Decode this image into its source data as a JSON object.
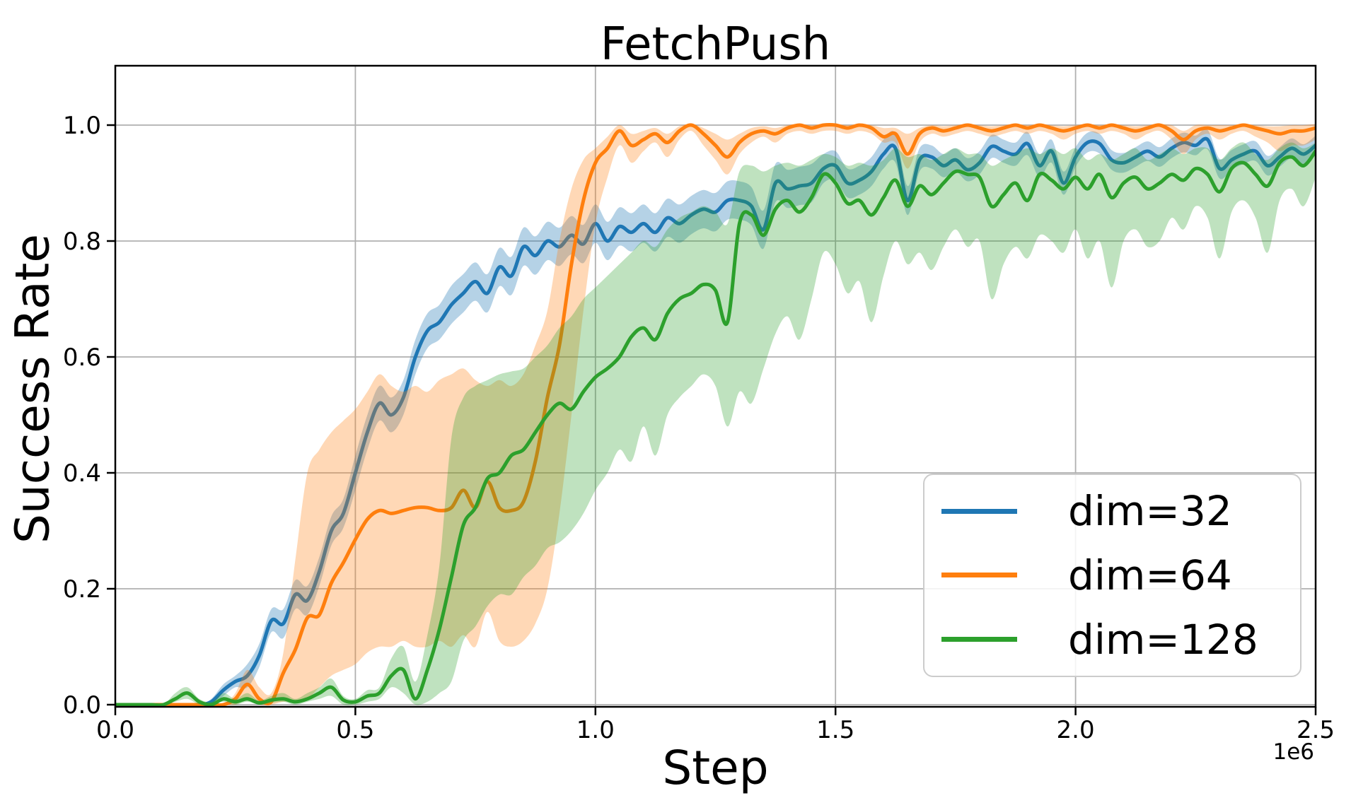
{
  "chart": {
    "title": "FetchPush",
    "xlabel": "Step",
    "ylabel": "Success Rate",
    "x_offset_label": "1e6"
  },
  "legend": {
    "position": "lower right",
    "entries": [
      {
        "label": "dim=32",
        "color": "#1f77b4"
      },
      {
        "label": "dim=64",
        "color": "#ff7f0e"
      },
      {
        "label": "dim=128",
        "color": "#2ca02c"
      }
    ]
  },
  "colors": {
    "background": "#ffffff",
    "grid": "#b0b0b0",
    "spine": "#000000",
    "series_blue": "#1f77b4",
    "series_orange": "#ff7f0e",
    "series_green": "#2ca02c"
  },
  "chart_data": {
    "type": "line",
    "title": "FetchPush",
    "xlabel": "Step",
    "ylabel": "Success Rate",
    "x_unit": "1e6 steps",
    "xlim_e6": [
      0,
      2.5
    ],
    "ylim": [
      -0.004,
      1.102
    ],
    "grid": true,
    "legend_position": "lower right",
    "x_start_e6": 0,
    "x_step_e6": 0.025,
    "xticks": {
      "values_e6": [
        0.0,
        0.5,
        1.0,
        1.5,
        2.0,
        2.5
      ],
      "labels": [
        "0.0",
        "0.5",
        "1.0",
        "1.5",
        "2.0",
        "2.5"
      ]
    },
    "yticks": {
      "values": [
        0.0,
        0.2,
        0.4,
        0.6,
        0.8,
        1.0
      ],
      "labels": [
        "0.0",
        "0.2",
        "0.4",
        "0.6",
        "0.8",
        "1.0"
      ]
    },
    "series": [
      {
        "name": "dim=32",
        "color": "#1f77b4",
        "band_alpha": 0.33,
        "mean": [
          0,
          0,
          0,
          0,
          0,
          0,
          0,
          0,
          0.005,
          0.025,
          0.04,
          0.05,
          0.085,
          0.145,
          0.14,
          0.19,
          0.18,
          0.23,
          0.3,
          0.33,
          0.4,
          0.47,
          0.52,
          0.5,
          0.53,
          0.6,
          0.645,
          0.66,
          0.69,
          0.71,
          0.73,
          0.71,
          0.755,
          0.74,
          0.79,
          0.775,
          0.8,
          0.79,
          0.81,
          0.795,
          0.83,
          0.8,
          0.825,
          0.815,
          0.83,
          0.815,
          0.84,
          0.83,
          0.845,
          0.855,
          0.85,
          0.87,
          0.87,
          0.86,
          0.82,
          0.9,
          0.89,
          0.895,
          0.9,
          0.925,
          0.93,
          0.9,
          0.905,
          0.92,
          0.95,
          0.96,
          0.87,
          0.94,
          0.945,
          0.93,
          0.94,
          0.923,
          0.935,
          0.963,
          0.955,
          0.95,
          0.968,
          0.93,
          0.955,
          0.9,
          0.945,
          0.97,
          0.968,
          0.94,
          0.935,
          0.945,
          0.955,
          0.945,
          0.96,
          0.97,
          0.965,
          0.975,
          0.925,
          0.94,
          0.95,
          0.955,
          0.93,
          0.945,
          0.96,
          0.95,
          0.965
        ],
        "lo": [
          0,
          0,
          0,
          0,
          0,
          0,
          0,
          0,
          0,
          0.015,
          0.03,
          0.03,
          0.065,
          0.125,
          0.115,
          0.165,
          0.155,
          0.205,
          0.275,
          0.305,
          0.37,
          0.44,
          0.49,
          0.47,
          0.5,
          0.57,
          0.615,
          0.63,
          0.657,
          0.677,
          0.697,
          0.677,
          0.722,
          0.707,
          0.757,
          0.742,
          0.767,
          0.757,
          0.777,
          0.762,
          0.797,
          0.767,
          0.792,
          0.782,
          0.797,
          0.782,
          0.807,
          0.797,
          0.812,
          0.822,
          0.817,
          0.837,
          0.837,
          0.827,
          0.787,
          0.867,
          0.857,
          0.862,
          0.867,
          0.9,
          0.905,
          0.875,
          0.88,
          0.895,
          0.925,
          0.935,
          0.845,
          0.92,
          0.925,
          0.91,
          0.92,
          0.903,
          0.915,
          0.943,
          0.935,
          0.93,
          0.948,
          0.91,
          0.935,
          0.88,
          0.928,
          0.953,
          0.951,
          0.923,
          0.918,
          0.928,
          0.938,
          0.928,
          0.943,
          0.953,
          0.948,
          0.958,
          0.908,
          0.923,
          0.933,
          0.938,
          0.913,
          0.928,
          0.943,
          0.933,
          0.948
        ],
        "hi": [
          0,
          0,
          0,
          0,
          0,
          0,
          0,
          0,
          0.01,
          0.035,
          0.05,
          0.07,
          0.105,
          0.165,
          0.165,
          0.215,
          0.205,
          0.255,
          0.325,
          0.355,
          0.43,
          0.5,
          0.55,
          0.53,
          0.56,
          0.63,
          0.675,
          0.69,
          0.723,
          0.743,
          0.763,
          0.743,
          0.788,
          0.773,
          0.823,
          0.808,
          0.833,
          0.823,
          0.843,
          0.828,
          0.863,
          0.833,
          0.858,
          0.848,
          0.863,
          0.848,
          0.873,
          0.863,
          0.878,
          0.888,
          0.883,
          0.903,
          0.903,
          0.893,
          0.853,
          0.933,
          0.923,
          0.928,
          0.933,
          0.95,
          0.955,
          0.925,
          0.93,
          0.945,
          0.975,
          0.985,
          0.895,
          0.96,
          0.965,
          0.95,
          0.96,
          0.943,
          0.955,
          0.983,
          0.975,
          0.97,
          0.988,
          0.95,
          0.975,
          0.92,
          0.962,
          0.987,
          0.985,
          0.957,
          0.952,
          0.962,
          0.972,
          0.962,
          0.977,
          0.987,
          0.982,
          0.992,
          0.942,
          0.957,
          0.967,
          0.972,
          0.947,
          0.962,
          0.977,
          0.967,
          0.982
        ]
      },
      {
        "name": "dim=64",
        "color": "#ff7f0e",
        "band_alpha": 0.3,
        "mean": [
          0,
          0,
          0,
          0,
          0,
          0,
          0,
          0,
          0,
          0,
          0.01,
          0.035,
          0.01,
          0.005,
          0.055,
          0.095,
          0.15,
          0.155,
          0.21,
          0.245,
          0.285,
          0.32,
          0.335,
          0.33,
          0.335,
          0.34,
          0.34,
          0.335,
          0.34,
          0.37,
          0.34,
          0.385,
          0.34,
          0.335,
          0.35,
          0.42,
          0.53,
          0.62,
          0.76,
          0.87,
          0.935,
          0.96,
          0.99,
          0.965,
          0.975,
          0.985,
          0.97,
          0.99,
          1.0,
          0.985,
          0.965,
          0.945,
          0.97,
          0.985,
          0.99,
          0.985,
          0.995,
          1.0,
          0.995,
          1.0,
          1.0,
          0.995,
          1.0,
          0.995,
          0.98,
          0.985,
          0.95,
          0.985,
          0.995,
          0.99,
          0.995,
          1.0,
          0.995,
          0.99,
          0.995,
          1.0,
          0.995,
          1.0,
          0.995,
          0.99,
          0.995,
          1.0,
          0.995,
          1.0,
          0.995,
          0.99,
          0.995,
          1.0,
          0.99,
          0.975,
          0.99,
          0.995,
          0.99,
          0.995,
          1.0,
          0.995,
          0.99,
          0.985,
          0.99,
          0.99,
          0.995
        ],
        "lo": [
          0,
          0,
          0,
          0,
          0,
          0,
          0,
          0,
          0,
          0,
          0,
          0.01,
          0,
          0,
          0.005,
          0.005,
          0.01,
          0.03,
          0.05,
          0.06,
          0.07,
          0.09,
          0.1,
          0.1,
          0.11,
          0.1,
          0.1,
          0.11,
          0.1,
          0.12,
          0.1,
          0.16,
          0.11,
          0.1,
          0.11,
          0.14,
          0.2,
          0.33,
          0.5,
          0.68,
          0.83,
          0.91,
          0.965,
          0.935,
          0.955,
          0.97,
          0.945,
          0.975,
          0.99,
          0.965,
          0.94,
          0.915,
          0.95,
          0.97,
          0.98,
          0.97,
          0.985,
          0.99,
          0.985,
          0.99,
          0.99,
          0.985,
          0.99,
          0.985,
          0.97,
          0.97,
          0.925,
          0.97,
          0.985,
          0.98,
          0.985,
          0.99,
          0.985,
          0.98,
          0.985,
          0.99,
          0.985,
          0.99,
          0.985,
          0.975,
          0.985,
          0.99,
          0.985,
          0.99,
          0.985,
          0.975,
          0.985,
          0.99,
          0.975,
          0.95,
          0.975,
          0.985,
          0.975,
          0.985,
          0.99,
          0.98,
          0.97,
          0.955,
          0.965,
          0.965,
          0.975
        ],
        "hi": [
          0,
          0,
          0,
          0,
          0,
          0,
          0,
          0,
          0,
          0,
          0.02,
          0.06,
          0.03,
          0.02,
          0.09,
          0.25,
          0.4,
          0.44,
          0.47,
          0.49,
          0.51,
          0.54,
          0.57,
          0.55,
          0.54,
          0.55,
          0.54,
          0.56,
          0.57,
          0.58,
          0.56,
          0.55,
          0.56,
          0.55,
          0.57,
          0.62,
          0.68,
          0.8,
          0.89,
          0.94,
          0.96,
          0.98,
          1.0,
          0.985,
          0.99,
          0.995,
          0.985,
          0.998,
          1.002,
          0.995,
          0.985,
          0.975,
          0.985,
          0.995,
          0.998,
          0.995,
          1.0,
          1.002,
          1.0,
          1.002,
          1.002,
          1.0,
          1.002,
          1.0,
          0.995,
          0.995,
          0.985,
          0.995,
          1.0,
          0.998,
          1.0,
          1.002,
          1.0,
          0.998,
          1.0,
          1.002,
          1.0,
          1.002,
          1.0,
          0.998,
          1.0,
          1.002,
          1.0,
          1.002,
          1.0,
          0.998,
          1.0,
          1.002,
          1.0,
          0.99,
          1.0,
          1.0,
          1.0,
          1.0,
          1.002,
          1.0,
          0.998,
          0.998,
          1.0,
          1.0,
          1.002
        ]
      },
      {
        "name": "dim=128",
        "color": "#2ca02c",
        "band_alpha": 0.3,
        "mean": [
          0,
          0,
          0,
          0,
          0,
          0.01,
          0.02,
          0.005,
          0,
          0.01,
          0.005,
          0.01,
          0.003,
          0.008,
          0.01,
          0.005,
          0.01,
          0.02,
          0.03,
          0.008,
          0.005,
          0.015,
          0.02,
          0.05,
          0.06,
          0.01,
          0.06,
          0.13,
          0.22,
          0.31,
          0.34,
          0.39,
          0.4,
          0.43,
          0.44,
          0.47,
          0.5,
          0.52,
          0.51,
          0.54,
          0.565,
          0.58,
          0.6,
          0.635,
          0.65,
          0.63,
          0.675,
          0.7,
          0.71,
          0.725,
          0.715,
          0.66,
          0.83,
          0.845,
          0.81,
          0.855,
          0.87,
          0.85,
          0.875,
          0.915,
          0.9,
          0.865,
          0.87,
          0.845,
          0.875,
          0.905,
          0.86,
          0.895,
          0.88,
          0.9,
          0.92,
          0.915,
          0.91,
          0.86,
          0.88,
          0.9,
          0.87,
          0.915,
          0.905,
          0.89,
          0.91,
          0.89,
          0.915,
          0.875,
          0.9,
          0.91,
          0.89,
          0.9,
          0.915,
          0.905,
          0.925,
          0.915,
          0.885,
          0.925,
          0.935,
          0.915,
          0.895,
          0.935,
          0.945,
          0.93,
          0.955
        ],
        "lo": [
          0,
          0,
          0,
          0,
          0,
          0.005,
          0.01,
          0,
          0,
          0.005,
          0,
          0.005,
          0,
          0.003,
          0.005,
          0,
          0.005,
          0.01,
          0.015,
          0,
          0,
          0.005,
          0.01,
          0.03,
          0.02,
          0,
          0.005,
          0.02,
          0.04,
          0.11,
          0.135,
          0.17,
          0.19,
          0.19,
          0.22,
          0.24,
          0.27,
          0.28,
          0.3,
          0.33,
          0.37,
          0.4,
          0.44,
          0.42,
          0.48,
          0.43,
          0.5,
          0.53,
          0.55,
          0.57,
          0.55,
          0.48,
          0.54,
          0.52,
          0.58,
          0.64,
          0.67,
          0.63,
          0.7,
          0.78,
          0.76,
          0.71,
          0.73,
          0.66,
          0.74,
          0.8,
          0.76,
          0.78,
          0.75,
          0.79,
          0.82,
          0.79,
          0.8,
          0.7,
          0.76,
          0.79,
          0.77,
          0.81,
          0.8,
          0.78,
          0.82,
          0.77,
          0.8,
          0.72,
          0.8,
          0.82,
          0.79,
          0.8,
          0.84,
          0.82,
          0.86,
          0.84,
          0.77,
          0.85,
          0.87,
          0.84,
          0.78,
          0.87,
          0.89,
          0.86,
          0.91
        ],
        "hi": [
          0,
          0,
          0,
          0,
          0,
          0.02,
          0.03,
          0.01,
          0.005,
          0.02,
          0.01,
          0.02,
          0.007,
          0.015,
          0.02,
          0.01,
          0.02,
          0.03,
          0.045,
          0.015,
          0.01,
          0.025,
          0.03,
          0.08,
          0.1,
          0.04,
          0.12,
          0.24,
          0.46,
          0.53,
          0.55,
          0.56,
          0.57,
          0.575,
          0.58,
          0.6,
          0.62,
          0.65,
          0.67,
          0.7,
          0.72,
          0.74,
          0.76,
          0.78,
          0.8,
          0.79,
          0.82,
          0.84,
          0.85,
          0.86,
          0.85,
          0.83,
          0.92,
          0.93,
          0.92,
          0.93,
          0.935,
          0.93,
          0.94,
          0.95,
          0.945,
          0.93,
          0.935,
          0.93,
          0.94,
          0.96,
          0.945,
          0.95,
          0.94,
          0.95,
          0.96,
          0.95,
          0.95,
          0.93,
          0.94,
          0.95,
          0.96,
          0.95,
          0.96,
          0.95,
          0.96,
          0.94,
          0.95,
          0.94,
          0.95,
          0.96,
          0.94,
          0.95,
          0.96,
          0.95,
          0.96,
          0.96,
          0.94,
          0.96,
          0.97,
          0.95,
          0.94,
          0.96,
          0.97,
          0.96,
          0.97
        ]
      }
    ]
  }
}
